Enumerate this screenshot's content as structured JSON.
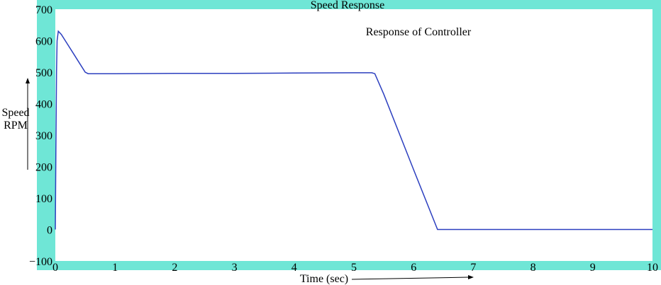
{
  "chart_data": {
    "type": "line",
    "title": "Speed Response",
    "annotation": "Response of Controller",
    "xlabel": "Time (sec)",
    "ylabel_line1": "Speed",
    "ylabel_line2": "RPM",
    "xlim": [
      0,
      10
    ],
    "ylim": [
      -100,
      700
    ],
    "x_ticks": [
      "0",
      "1",
      "2",
      "3",
      "4",
      "5",
      "6",
      "7",
      "8",
      "9",
      "10"
    ],
    "y_ticks": [
      "700",
      "600",
      "500",
      "400",
      "300",
      "200",
      "100",
      "0",
      "−100"
    ],
    "grid": false,
    "colors": {
      "frame": "#6fe6d6",
      "plot_bg": "#ffffff",
      "line": "#2c3fbf"
    },
    "series": [
      {
        "x": [
          0,
          0.01,
          0.02,
          0.03,
          0.05,
          0.1,
          0.2,
          0.3,
          0.4,
          0.5,
          0.55,
          1.0,
          2.0,
          3.0,
          4.0,
          5.0,
          5.3,
          5.35,
          5.5,
          6.0,
          6.4,
          6.5,
          7.0,
          8.0,
          9.0,
          10.0
        ],
        "y": [
          0,
          250,
          500,
          600,
          630,
          620,
          590,
          560,
          530,
          500,
          495,
          495,
          496,
          496,
          497,
          498,
          498,
          495,
          430,
          190,
          0,
          0,
          0,
          0,
          0,
          0
        ]
      }
    ]
  }
}
